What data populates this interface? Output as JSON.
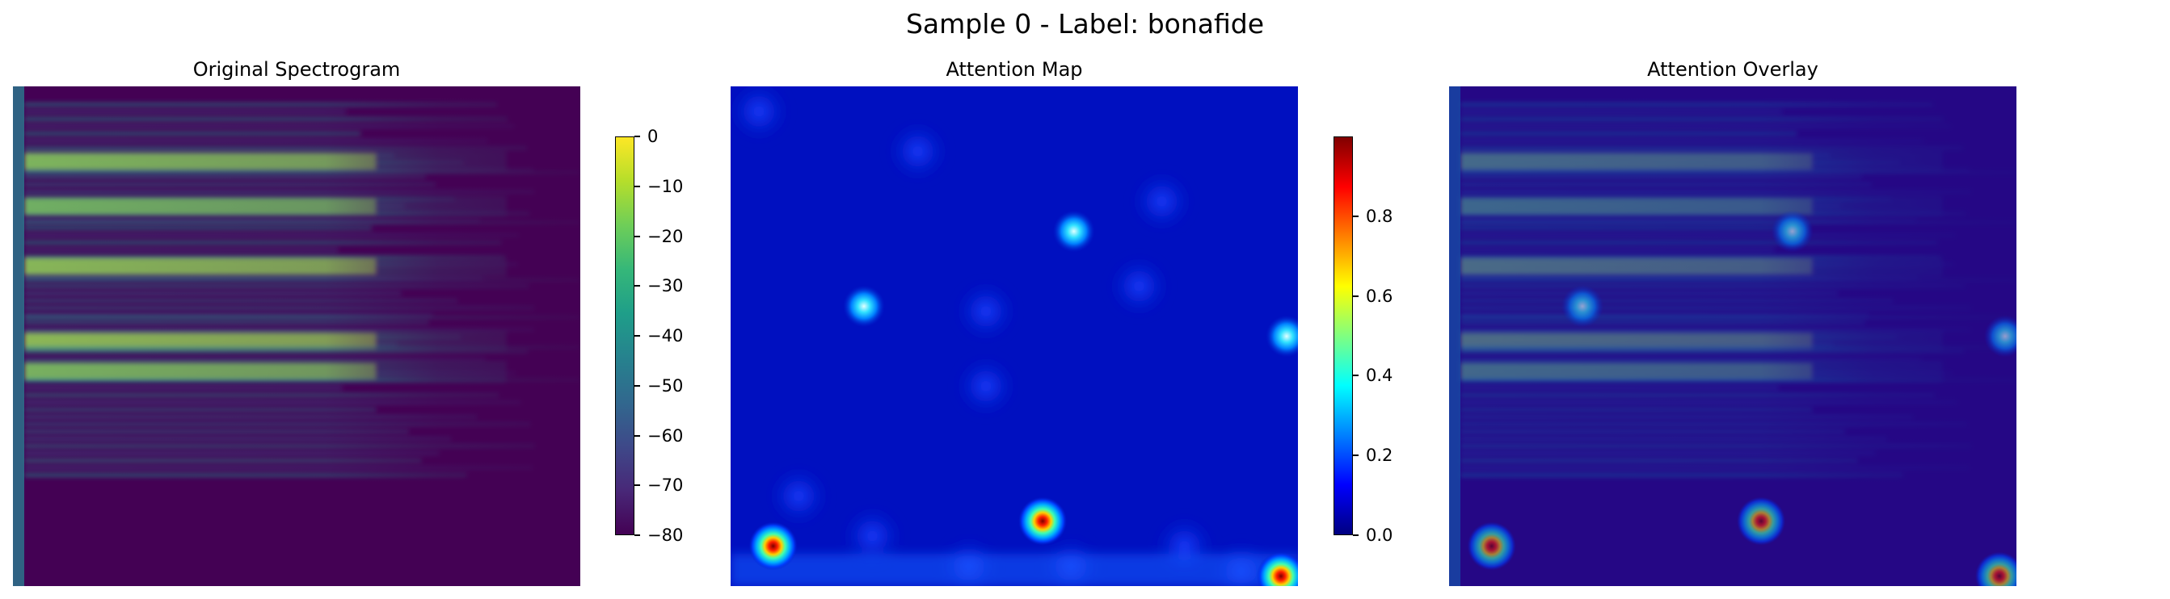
{
  "figure": {
    "title": "Sample 0 - Label: bonafide"
  },
  "chart_data": [
    {
      "type": "heatmap",
      "title": "Original Spectrogram",
      "colormap": "viridis",
      "axes_visible": false,
      "colorbar": {
        "range": [
          -80,
          0
        ],
        "ticks": [
          0,
          -10,
          -20,
          -30,
          -40,
          -50,
          -60,
          -70,
          -80
        ],
        "tick_labels": [
          "0",
          "−10",
          "−20",
          "−30",
          "−40",
          "−50",
          "−60",
          "−70",
          "−80"
        ]
      },
      "description_bands": [
        {
          "row": 0.15,
          "level_db": -5
        },
        {
          "row": 0.24,
          "level_db": -8
        },
        {
          "row": 0.36,
          "level_db": -3
        },
        {
          "row": 0.51,
          "level_db": -2
        },
        {
          "row": 0.57,
          "level_db": -6
        }
      ]
    },
    {
      "type": "heatmap",
      "title": "Attention Map",
      "colormap": "jet",
      "axes_visible": false,
      "colorbar": {
        "range": [
          0.0,
          1.0
        ],
        "ticks": [
          0.0,
          0.2,
          0.4,
          0.6,
          0.8
        ],
        "tick_labels": [
          "0.0",
          "0.2",
          "0.4",
          "0.6",
          "0.8"
        ]
      },
      "hotspots": [
        {
          "x": 0.605,
          "y": 0.29,
          "value": 0.45
        },
        {
          "x": 0.235,
          "y": 0.44,
          "value": 0.25
        },
        {
          "x": 0.98,
          "y": 0.5,
          "value": 0.45
        },
        {
          "x": 0.55,
          "y": 0.87,
          "value": 1.0
        },
        {
          "x": 0.075,
          "y": 0.92,
          "value": 0.8
        },
        {
          "x": 0.97,
          "y": 0.98,
          "value": 0.95
        }
      ]
    },
    {
      "type": "heatmap",
      "title": "Attention Overlay",
      "colormap": "viridis + jet overlay",
      "axes_visible": false
    }
  ]
}
